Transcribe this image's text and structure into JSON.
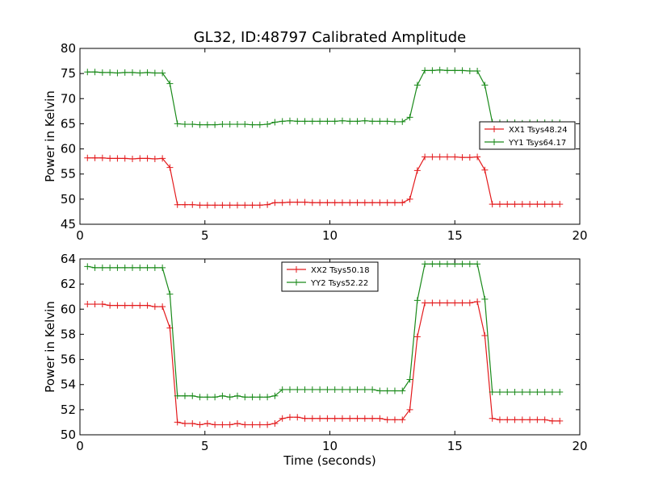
{
  "chart_data": [
    {
      "type": "line",
      "title": "GL32, ID:48797 Calibrated Amplitude",
      "xlabel": "",
      "ylabel": "Power in Kelvin",
      "xlim": [
        0,
        20
      ],
      "ylim": [
        45,
        80
      ],
      "xticks": [
        0,
        5,
        10,
        15,
        20
      ],
      "yticks": [
        45,
        50,
        55,
        60,
        65,
        70,
        75,
        80
      ],
      "grid": false,
      "legend_position": "center-right",
      "x": [
        0.3,
        0.6,
        0.9,
        1.2,
        1.5,
        1.8,
        2.1,
        2.4,
        2.7,
        3.0,
        3.3,
        3.6,
        3.9,
        4.2,
        4.5,
        4.8,
        5.1,
        5.4,
        5.7,
        6.0,
        6.3,
        6.6,
        6.9,
        7.2,
        7.5,
        7.8,
        8.1,
        8.4,
        8.7,
        9.0,
        9.3,
        9.6,
        9.9,
        10.2,
        10.5,
        10.8,
        11.1,
        11.4,
        11.7,
        12.0,
        12.3,
        12.6,
        12.9,
        13.2,
        13.5,
        13.8,
        14.1,
        14.4,
        14.7,
        15.0,
        15.3,
        15.6,
        15.9,
        16.2,
        16.5,
        16.8,
        17.1,
        17.4,
        17.7,
        18.0,
        18.3,
        18.6,
        18.9,
        19.2
      ],
      "series": [
        {
          "name": "XX1 Tsys48.24",
          "color": "#e31a1c",
          "values": [
            58.2,
            58.2,
            58.2,
            58.1,
            58.1,
            58.1,
            58.0,
            58.1,
            58.1,
            58.0,
            58.1,
            56.3,
            48.9,
            48.9,
            48.9,
            48.8,
            48.8,
            48.8,
            48.8,
            48.8,
            48.8,
            48.8,
            48.8,
            48.8,
            48.9,
            49.3,
            49.3,
            49.4,
            49.4,
            49.4,
            49.3,
            49.3,
            49.3,
            49.3,
            49.3,
            49.3,
            49.3,
            49.3,
            49.3,
            49.3,
            49.3,
            49.3,
            49.3,
            50.0,
            55.7,
            58.4,
            58.4,
            58.4,
            58.4,
            58.4,
            58.3,
            58.3,
            58.4,
            55.8,
            49.0,
            49.0,
            49.0,
            49.0,
            49.0,
            49.0,
            49.0,
            49.0,
            49.0,
            49.0
          ]
        },
        {
          "name": "YY1 Tsys64.17",
          "color": "#1a8a1a",
          "values": [
            75.3,
            75.3,
            75.2,
            75.2,
            75.1,
            75.2,
            75.2,
            75.1,
            75.2,
            75.1,
            75.1,
            73.0,
            65.0,
            64.9,
            64.9,
            64.8,
            64.8,
            64.8,
            64.9,
            64.9,
            64.9,
            64.9,
            64.8,
            64.8,
            64.9,
            65.3,
            65.5,
            65.6,
            65.5,
            65.5,
            65.5,
            65.5,
            65.5,
            65.5,
            65.6,
            65.5,
            65.5,
            65.6,
            65.5,
            65.5,
            65.5,
            65.4,
            65.4,
            66.3,
            72.7,
            75.6,
            75.6,
            75.7,
            75.6,
            75.6,
            75.6,
            75.5,
            75.5,
            72.7,
            65.3,
            65.2,
            65.2,
            65.2,
            65.1,
            65.2,
            65.2,
            65.2,
            65.2,
            65.2
          ]
        }
      ]
    },
    {
      "type": "line",
      "title": "",
      "xlabel": "Time (seconds)",
      "ylabel": "Power in Kelvin",
      "xlim": [
        0,
        20
      ],
      "ylim": [
        50,
        64
      ],
      "xticks": [
        0,
        5,
        10,
        15,
        20
      ],
      "yticks": [
        50,
        52,
        54,
        56,
        58,
        60,
        62,
        64
      ],
      "grid": false,
      "legend_position": "top-center",
      "x": [
        0.3,
        0.6,
        0.9,
        1.2,
        1.5,
        1.8,
        2.1,
        2.4,
        2.7,
        3.0,
        3.3,
        3.6,
        3.9,
        4.2,
        4.5,
        4.8,
        5.1,
        5.4,
        5.7,
        6.0,
        6.3,
        6.6,
        6.9,
        7.2,
        7.5,
        7.8,
        8.1,
        8.4,
        8.7,
        9.0,
        9.3,
        9.6,
        9.9,
        10.2,
        10.5,
        10.8,
        11.1,
        11.4,
        11.7,
        12.0,
        12.3,
        12.6,
        12.9,
        13.2,
        13.5,
        13.8,
        14.1,
        14.4,
        14.7,
        15.0,
        15.3,
        15.6,
        15.9,
        16.2,
        16.5,
        16.8,
        17.1,
        17.4,
        17.7,
        18.0,
        18.3,
        18.6,
        18.9,
        19.2
      ],
      "series": [
        {
          "name": "XX2 Tsys50.18",
          "color": "#e31a1c",
          "values": [
            60.4,
            60.4,
            60.4,
            60.3,
            60.3,
            60.3,
            60.3,
            60.3,
            60.3,
            60.2,
            60.2,
            58.5,
            51.0,
            50.9,
            50.9,
            50.8,
            50.9,
            50.8,
            50.8,
            50.8,
            50.9,
            50.8,
            50.8,
            50.8,
            50.8,
            50.9,
            51.3,
            51.4,
            51.4,
            51.3,
            51.3,
            51.3,
            51.3,
            51.3,
            51.3,
            51.3,
            51.3,
            51.3,
            51.3,
            51.3,
            51.2,
            51.2,
            51.2,
            52.0,
            57.8,
            60.5,
            60.5,
            60.5,
            60.5,
            60.5,
            60.5,
            60.5,
            60.6,
            57.9,
            51.3,
            51.2,
            51.2,
            51.2,
            51.2,
            51.2,
            51.2,
            51.2,
            51.1,
            51.1
          ]
        },
        {
          "name": "YY2 Tsys52.22",
          "color": "#1a8a1a",
          "values": [
            63.4,
            63.3,
            63.3,
            63.3,
            63.3,
            63.3,
            63.3,
            63.3,
            63.3,
            63.3,
            63.3,
            61.2,
            53.1,
            53.1,
            53.1,
            53.0,
            53.0,
            53.0,
            53.1,
            53.0,
            53.1,
            53.0,
            53.0,
            53.0,
            53.0,
            53.1,
            53.6,
            53.6,
            53.6,
            53.6,
            53.6,
            53.6,
            53.6,
            53.6,
            53.6,
            53.6,
            53.6,
            53.6,
            53.6,
            53.5,
            53.5,
            53.5,
            53.5,
            54.4,
            60.7,
            63.6,
            63.6,
            63.6,
            63.6,
            63.6,
            63.6,
            63.6,
            63.6,
            60.8,
            53.4,
            53.4,
            53.4,
            53.4,
            53.4,
            53.4,
            53.4,
            53.4,
            53.4,
            53.4
          ]
        }
      ]
    }
  ]
}
